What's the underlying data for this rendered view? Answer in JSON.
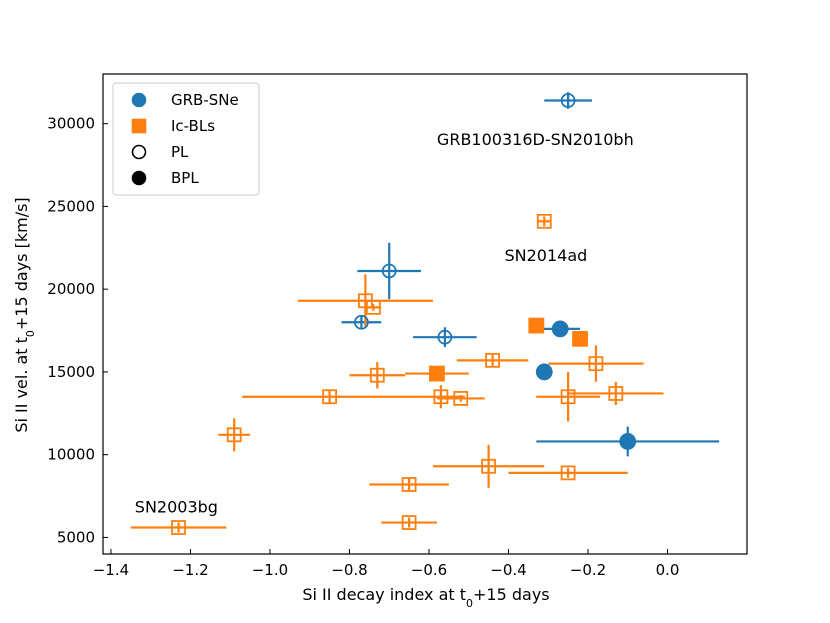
{
  "chart_data": {
    "type": "scatter",
    "xlabel": {
      "main": "Si II decay index at t",
      "sub": "0",
      "rest": "+15 days"
    },
    "ylabel": {
      "main": "Si II vel. at t",
      "sub": "0",
      "rest": "+15 days [km/s]"
    },
    "xlim": [
      -1.42,
      0.2
    ],
    "ylim": [
      4000,
      33000
    ],
    "xticks": [
      -1.4,
      -1.2,
      -1.0,
      -0.8,
      -0.6,
      -0.4,
      -0.2,
      0.0
    ],
    "xtick_labels": [
      "−1.4",
      "−1.2",
      "−1.0",
      "−0.8",
      "−0.6",
      "−0.4",
      "−0.2",
      "0.0"
    ],
    "yticks": [
      5000,
      10000,
      15000,
      20000,
      25000,
      30000
    ],
    "ytick_labels": [
      "5000",
      "10000",
      "15000",
      "20000",
      "25000",
      "30000"
    ],
    "colors": {
      "grb": "#1f77b4",
      "icbl": "#ff7f0e"
    },
    "legend": {
      "placement": "top-left",
      "entries": [
        {
          "label": "GRB-SNe",
          "marker": "circle",
          "style": "filled",
          "color": "#1f77b4"
        },
        {
          "label": "Ic-BLs",
          "marker": "square",
          "style": "filled",
          "color": "#ff7f0e"
        },
        {
          "label": "PL",
          "marker": "circle",
          "style": "open",
          "color": "#000000"
        },
        {
          "label": "BPL",
          "marker": "circle",
          "style": "filled",
          "color": "#000000"
        }
      ]
    },
    "annotations": [
      {
        "text": "GRB100316D-SN2010bh",
        "x": -0.58,
        "y": 28700
      },
      {
        "text": "SN2014ad",
        "x": -0.41,
        "y": 21700
      },
      {
        "text": "SN2003bg",
        "x": -1.34,
        "y": 6500
      }
    ],
    "series": [
      {
        "name": "GRB-SNe",
        "marker": "circle",
        "points": [
          {
            "x": -0.25,
            "y": 31400,
            "xerr": 0.06,
            "yerr": 500,
            "fit": "PL"
          },
          {
            "x": -0.7,
            "y": 21100,
            "xerr": 0.08,
            "yerr": 1700,
            "fit": "PL"
          },
          {
            "x": -0.77,
            "y": 18000,
            "xerr": 0.05,
            "yerr": 400,
            "fit": "PL"
          },
          {
            "x": -0.56,
            "y": 17100,
            "xerr": 0.08,
            "yerr": 600,
            "fit": "PL"
          },
          {
            "x": -0.27,
            "y": 17600,
            "xerr": 0.05,
            "yerr": 200,
            "fit": "BPL"
          },
          {
            "x": -0.31,
            "y": 15000,
            "xerr": 0.01,
            "yerr": 100,
            "fit": "BPL"
          },
          {
            "x": -0.1,
            "y": 10800,
            "xerr": 0.23,
            "yerr": 900,
            "fit": "BPL"
          }
        ]
      },
      {
        "name": "Ic-BLs",
        "marker": "square",
        "points": [
          {
            "x": -0.31,
            "y": 24100,
            "xerr": 0.015,
            "yerr": 300,
            "fit": "PL"
          },
          {
            "x": -0.76,
            "y": 19300,
            "xerr": 0.17,
            "yerr": 1600,
            "fit": "PL"
          },
          {
            "x": -0.74,
            "y": 18900,
            "xerr": 0.02,
            "yerr": 200,
            "fit": "PL"
          },
          {
            "x": -0.33,
            "y": 17800,
            "xerr": 0.02,
            "yerr": 200,
            "fit": "BPL"
          },
          {
            "x": -0.22,
            "y": 17000,
            "xerr": 0.02,
            "yerr": 200,
            "fit": "BPL"
          },
          {
            "x": -0.18,
            "y": 15500,
            "xerr": 0.12,
            "yerr": 1100,
            "fit": "PL"
          },
          {
            "x": -0.44,
            "y": 15700,
            "xerr": 0.09,
            "yerr": 400,
            "fit": "PL"
          },
          {
            "x": -0.58,
            "y": 14900,
            "xerr": 0.08,
            "yerr": 200,
            "fit": "BPL"
          },
          {
            "x": -0.73,
            "y": 14800,
            "xerr": 0.07,
            "yerr": 800,
            "fit": "PL"
          },
          {
            "x": -0.85,
            "y": 13500,
            "xerr": 0.22,
            "yerr": 400,
            "fit": "PL"
          },
          {
            "x": -0.57,
            "y": 13500,
            "xerr": 0.06,
            "yerr": 700,
            "fit": "PL"
          },
          {
            "x": -0.52,
            "y": 13400,
            "xerr": 0.06,
            "yerr": 200,
            "fit": "PL"
          },
          {
            "x": -0.25,
            "y": 13500,
            "xerr": 0.08,
            "yerr": 1500,
            "fit": "PL"
          },
          {
            "x": -0.13,
            "y": 13700,
            "xerr": 0.12,
            "yerr": 700,
            "fit": "PL"
          },
          {
            "x": -1.09,
            "y": 11200,
            "xerr": 0.04,
            "yerr": 1000,
            "fit": "PL"
          },
          {
            "x": -0.45,
            "y": 9300,
            "xerr": 0.14,
            "yerr": 1300,
            "fit": "PL"
          },
          {
            "x": -0.25,
            "y": 8900,
            "xerr": 0.15,
            "yerr": 300,
            "fit": "PL"
          },
          {
            "x": -0.65,
            "y": 8200,
            "xerr": 0.1,
            "yerr": 400,
            "fit": "PL"
          },
          {
            "x": -0.65,
            "y": 5900,
            "xerr": 0.07,
            "yerr": 300,
            "fit": "PL"
          },
          {
            "x": -1.23,
            "y": 5600,
            "xerr": 0.12,
            "yerr": 300,
            "fit": "PL"
          }
        ]
      }
    ]
  }
}
